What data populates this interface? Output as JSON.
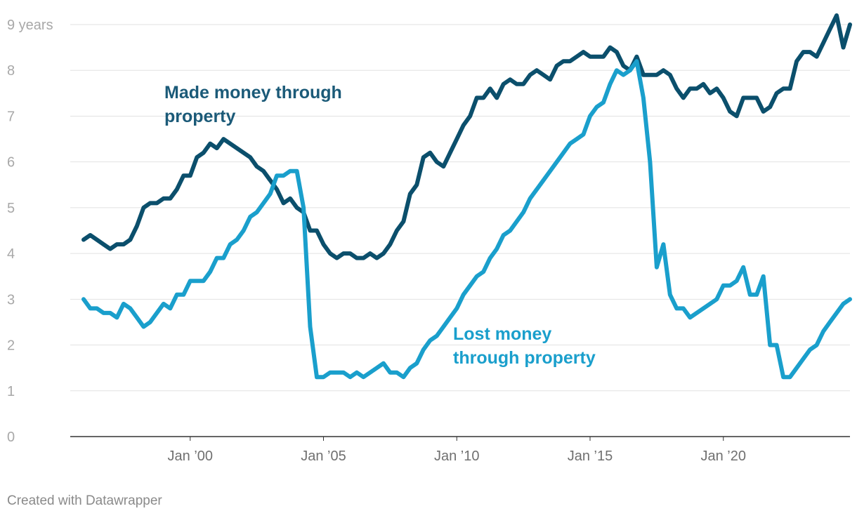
{
  "chart_data": {
    "type": "line",
    "title": "",
    "xlabel": "",
    "ylabel": "",
    "ylim": [
      0,
      9
    ],
    "y_ticks": [
      {
        "value": 0,
        "label": "0"
      },
      {
        "value": 1,
        "label": "1"
      },
      {
        "value": 2,
        "label": "2"
      },
      {
        "value": 3,
        "label": "3"
      },
      {
        "value": 4,
        "label": "4"
      },
      {
        "value": 5,
        "label": "5"
      },
      {
        "value": 6,
        "label": "6"
      },
      {
        "value": 7,
        "label": "7"
      },
      {
        "value": 8,
        "label": "8"
      },
      {
        "value": 9,
        "label": "9 years"
      }
    ],
    "x_ticks": [
      {
        "value": 2000,
        "label": "Jan ’00"
      },
      {
        "value": 2005,
        "label": "Jan ’05"
      },
      {
        "value": 2010,
        "label": "Jan ’10"
      },
      {
        "value": 2015,
        "label": "Jan ’15"
      },
      {
        "value": 2020,
        "label": "Jan ’20"
      }
    ],
    "xlim": [
      1995.5,
      2024.75
    ],
    "grid": true,
    "series": [
      {
        "name": "Made money through property",
        "color": "#0b4f6c",
        "points": [
          [
            1996.0,
            4.3
          ],
          [
            1996.25,
            4.4
          ],
          [
            1996.5,
            4.3
          ],
          [
            1996.75,
            4.2
          ],
          [
            1997.0,
            4.1
          ],
          [
            1997.25,
            4.2
          ],
          [
            1997.5,
            4.2
          ],
          [
            1997.75,
            4.3
          ],
          [
            1998.0,
            4.6
          ],
          [
            1998.25,
            5.0
          ],
          [
            1998.5,
            5.1
          ],
          [
            1998.75,
            5.1
          ],
          [
            1999.0,
            5.2
          ],
          [
            1999.25,
            5.2
          ],
          [
            1999.5,
            5.4
          ],
          [
            1999.75,
            5.7
          ],
          [
            2000.0,
            5.7
          ],
          [
            2000.25,
            6.1
          ],
          [
            2000.5,
            6.2
          ],
          [
            2000.75,
            6.4
          ],
          [
            2001.0,
            6.3
          ],
          [
            2001.25,
            6.5
          ],
          [
            2001.5,
            6.4
          ],
          [
            2001.75,
            6.3
          ],
          [
            2002.0,
            6.2
          ],
          [
            2002.25,
            6.1
          ],
          [
            2002.5,
            5.9
          ],
          [
            2002.75,
            5.8
          ],
          [
            2003.0,
            5.6
          ],
          [
            2003.25,
            5.4
          ],
          [
            2003.5,
            5.1
          ],
          [
            2003.75,
            5.2
          ],
          [
            2004.0,
            5.0
          ],
          [
            2004.25,
            4.9
          ],
          [
            2004.5,
            4.5
          ],
          [
            2004.75,
            4.5
          ],
          [
            2005.0,
            4.2
          ],
          [
            2005.25,
            4.0
          ],
          [
            2005.5,
            3.9
          ],
          [
            2005.75,
            4.0
          ],
          [
            2006.0,
            4.0
          ],
          [
            2006.25,
            3.9
          ],
          [
            2006.5,
            3.9
          ],
          [
            2006.75,
            4.0
          ],
          [
            2007.0,
            3.9
          ],
          [
            2007.25,
            4.0
          ],
          [
            2007.5,
            4.2
          ],
          [
            2007.75,
            4.5
          ],
          [
            2008.0,
            4.7
          ],
          [
            2008.25,
            5.3
          ],
          [
            2008.5,
            5.5
          ],
          [
            2008.75,
            6.1
          ],
          [
            2009.0,
            6.2
          ],
          [
            2009.25,
            6.0
          ],
          [
            2009.5,
            5.9
          ],
          [
            2009.75,
            6.2
          ],
          [
            2010.0,
            6.5
          ],
          [
            2010.25,
            6.8
          ],
          [
            2010.5,
            7.0
          ],
          [
            2010.75,
            7.4
          ],
          [
            2011.0,
            7.4
          ],
          [
            2011.25,
            7.6
          ],
          [
            2011.5,
            7.4
          ],
          [
            2011.75,
            7.7
          ],
          [
            2012.0,
            7.8
          ],
          [
            2012.25,
            7.7
          ],
          [
            2012.5,
            7.7
          ],
          [
            2012.75,
            7.9
          ],
          [
            2013.0,
            8.0
          ],
          [
            2013.25,
            7.9
          ],
          [
            2013.5,
            7.8
          ],
          [
            2013.75,
            8.1
          ],
          [
            2014.0,
            8.2
          ],
          [
            2014.25,
            8.2
          ],
          [
            2014.5,
            8.3
          ],
          [
            2014.75,
            8.4
          ],
          [
            2015.0,
            8.3
          ],
          [
            2015.25,
            8.3
          ],
          [
            2015.5,
            8.3
          ],
          [
            2015.75,
            8.5
          ],
          [
            2016.0,
            8.4
          ],
          [
            2016.25,
            8.1
          ],
          [
            2016.5,
            8.0
          ],
          [
            2016.75,
            8.3
          ],
          [
            2017.0,
            7.9
          ],
          [
            2017.25,
            7.9
          ],
          [
            2017.5,
            7.9
          ],
          [
            2017.75,
            8.0
          ],
          [
            2018.0,
            7.9
          ],
          [
            2018.25,
            7.6
          ],
          [
            2018.5,
            7.4
          ],
          [
            2018.75,
            7.6
          ],
          [
            2019.0,
            7.6
          ],
          [
            2019.25,
            7.7
          ],
          [
            2019.5,
            7.5
          ],
          [
            2019.75,
            7.6
          ],
          [
            2020.0,
            7.4
          ],
          [
            2020.25,
            7.1
          ],
          [
            2020.5,
            7.0
          ],
          [
            2020.75,
            7.4
          ],
          [
            2021.0,
            7.4
          ],
          [
            2021.25,
            7.4
          ],
          [
            2021.5,
            7.1
          ],
          [
            2021.75,
            7.2
          ],
          [
            2022.0,
            7.5
          ],
          [
            2022.25,
            7.6
          ],
          [
            2022.5,
            7.6
          ],
          [
            2022.75,
            8.2
          ],
          [
            2023.0,
            8.4
          ],
          [
            2023.25,
            8.4
          ],
          [
            2023.5,
            8.3
          ],
          [
            2023.75,
            8.6
          ],
          [
            2024.0,
            8.9
          ],
          [
            2024.25,
            9.2
          ],
          [
            2024.5,
            8.5
          ],
          [
            2024.75,
            9.0
          ]
        ]
      },
      {
        "name": "Lost money through property",
        "color": "#1a9fcc",
        "points": [
          [
            1996.0,
            3.0
          ],
          [
            1996.25,
            2.8
          ],
          [
            1996.5,
            2.8
          ],
          [
            1996.75,
            2.7
          ],
          [
            1997.0,
            2.7
          ],
          [
            1997.25,
            2.6
          ],
          [
            1997.5,
            2.9
          ],
          [
            1997.75,
            2.8
          ],
          [
            1998.0,
            2.6
          ],
          [
            1998.25,
            2.4
          ],
          [
            1998.5,
            2.5
          ],
          [
            1998.75,
            2.7
          ],
          [
            1999.0,
            2.9
          ],
          [
            1999.25,
            2.8
          ],
          [
            1999.5,
            3.1
          ],
          [
            1999.75,
            3.1
          ],
          [
            2000.0,
            3.4
          ],
          [
            2000.25,
            3.4
          ],
          [
            2000.5,
            3.4
          ],
          [
            2000.75,
            3.6
          ],
          [
            2001.0,
            3.9
          ],
          [
            2001.25,
            3.9
          ],
          [
            2001.5,
            4.2
          ],
          [
            2001.75,
            4.3
          ],
          [
            2002.0,
            4.5
          ],
          [
            2002.25,
            4.8
          ],
          [
            2002.5,
            4.9
          ],
          [
            2002.75,
            5.1
          ],
          [
            2003.0,
            5.3
          ],
          [
            2003.25,
            5.7
          ],
          [
            2003.5,
            5.7
          ],
          [
            2003.75,
            5.8
          ],
          [
            2004.0,
            5.8
          ],
          [
            2004.25,
            5.0
          ],
          [
            2004.5,
            2.4
          ],
          [
            2004.75,
            1.3
          ],
          [
            2005.0,
            1.3
          ],
          [
            2005.25,
            1.4
          ],
          [
            2005.5,
            1.4
          ],
          [
            2005.75,
            1.4
          ],
          [
            2006.0,
            1.3
          ],
          [
            2006.25,
            1.4
          ],
          [
            2006.5,
            1.3
          ],
          [
            2006.75,
            1.4
          ],
          [
            2007.0,
            1.5
          ],
          [
            2007.25,
            1.6
          ],
          [
            2007.5,
            1.4
          ],
          [
            2007.75,
            1.4
          ],
          [
            2008.0,
            1.3
          ],
          [
            2008.25,
            1.5
          ],
          [
            2008.5,
            1.6
          ],
          [
            2008.75,
            1.9
          ],
          [
            2009.0,
            2.1
          ],
          [
            2009.25,
            2.2
          ],
          [
            2009.5,
            2.4
          ],
          [
            2009.75,
            2.6
          ],
          [
            2010.0,
            2.8
          ],
          [
            2010.25,
            3.1
          ],
          [
            2010.5,
            3.3
          ],
          [
            2010.75,
            3.5
          ],
          [
            2011.0,
            3.6
          ],
          [
            2011.25,
            3.9
          ],
          [
            2011.5,
            4.1
          ],
          [
            2011.75,
            4.4
          ],
          [
            2012.0,
            4.5
          ],
          [
            2012.25,
            4.7
          ],
          [
            2012.5,
            4.9
          ],
          [
            2012.75,
            5.2
          ],
          [
            2013.0,
            5.4
          ],
          [
            2013.25,
            5.6
          ],
          [
            2013.5,
            5.8
          ],
          [
            2013.75,
            6.0
          ],
          [
            2014.0,
            6.2
          ],
          [
            2014.25,
            6.4
          ],
          [
            2014.5,
            6.5
          ],
          [
            2014.75,
            6.6
          ],
          [
            2015.0,
            7.0
          ],
          [
            2015.25,
            7.2
          ],
          [
            2015.5,
            7.3
          ],
          [
            2015.75,
            7.7
          ],
          [
            2016.0,
            8.0
          ],
          [
            2016.25,
            7.9
          ],
          [
            2016.5,
            8.0
          ],
          [
            2016.75,
            8.2
          ],
          [
            2017.0,
            7.4
          ],
          [
            2017.25,
            6.0
          ],
          [
            2017.5,
            3.7
          ],
          [
            2017.75,
            4.2
          ],
          [
            2018.0,
            3.1
          ],
          [
            2018.25,
            2.8
          ],
          [
            2018.5,
            2.8
          ],
          [
            2018.75,
            2.6
          ],
          [
            2019.0,
            2.7
          ],
          [
            2019.25,
            2.8
          ],
          [
            2019.5,
            2.9
          ],
          [
            2019.75,
            3.0
          ],
          [
            2020.0,
            3.3
          ],
          [
            2020.25,
            3.3
          ],
          [
            2020.5,
            3.4
          ],
          [
            2020.75,
            3.7
          ],
          [
            2021.0,
            3.1
          ],
          [
            2021.25,
            3.1
          ],
          [
            2021.5,
            3.5
          ],
          [
            2021.75,
            2.0
          ],
          [
            2022.0,
            2.0
          ],
          [
            2022.25,
            1.3
          ],
          [
            2022.5,
            1.3
          ],
          [
            2022.75,
            1.5
          ],
          [
            2023.0,
            1.7
          ],
          [
            2023.25,
            1.9
          ],
          [
            2023.5,
            2.0
          ],
          [
            2023.75,
            2.3
          ],
          [
            2024.0,
            2.5
          ],
          [
            2024.25,
            2.7
          ],
          [
            2024.5,
            2.9
          ],
          [
            2024.75,
            3.0
          ]
        ]
      }
    ],
    "annotations": [
      {
        "name": "made",
        "lines": [
          "Made money through",
          "property"
        ],
        "color": "#1b5a78"
      },
      {
        "name": "lost",
        "lines": [
          "Lost money",
          "through property"
        ],
        "color": "#1a9fcc"
      }
    ]
  },
  "footer": "Created with Datawrapper"
}
